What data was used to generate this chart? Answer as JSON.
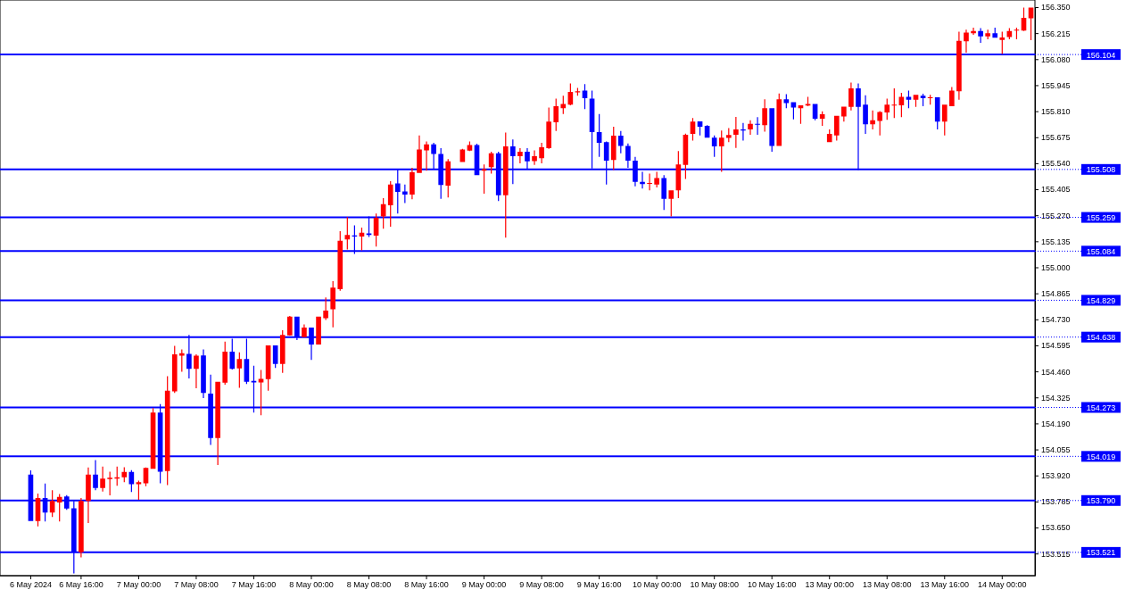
{
  "chart_data": {
    "type": "candlestick",
    "categories": [
      "6 May 2024",
      null,
      null,
      null,
      null,
      null,
      null,
      "6 May 16:00",
      null,
      null,
      null,
      null,
      null,
      null,
      null,
      "7 May 00:00",
      null,
      null,
      null,
      null,
      null,
      null,
      null,
      "7 May 08:00",
      null,
      null,
      null,
      null,
      null,
      null,
      null,
      "7 May 16:00",
      null,
      null,
      null,
      null,
      null,
      null,
      null,
      "8 May 00:00",
      null,
      null,
      null,
      null,
      null,
      null,
      null,
      "8 May 08:00",
      null,
      null,
      null,
      null,
      null,
      null,
      null,
      "8 May 16:00",
      null,
      null,
      null,
      null,
      null,
      null,
      null,
      "9 May 00:00",
      null,
      null,
      null,
      null,
      null,
      null,
      null,
      "9 May 08:00",
      null,
      null,
      null,
      null,
      null,
      null,
      null,
      "9 May 16:00",
      null,
      null,
      null,
      null,
      null,
      null,
      null,
      "10 May 00:00",
      null,
      null,
      null,
      null,
      null,
      null,
      null,
      "10 May 08:00",
      null,
      null,
      null,
      null,
      null,
      null,
      null,
      "10 May 16:00",
      null,
      null,
      null,
      null,
      null,
      null,
      null,
      "13 May 00:00",
      null,
      null,
      null,
      null,
      null,
      null,
      null,
      "13 May 08:00",
      null,
      null,
      null,
      null,
      null,
      null,
      null,
      "13 May 16:00",
      null,
      null,
      null,
      null,
      null,
      null,
      null,
      "14 May 00:00",
      null,
      null,
      null,
      null
    ],
    "ohlc": [
      [
        153.924,
        153.947,
        153.684,
        153.684
      ],
      [
        153.684,
        153.826,
        153.656,
        153.803
      ],
      [
        153.803,
        153.878,
        153.681,
        153.728
      ],
      [
        153.728,
        153.843,
        153.704,
        153.788
      ],
      [
        153.78,
        153.824,
        153.681,
        153.809
      ],
      [
        153.811,
        153.818,
        153.741,
        153.748
      ],
      [
        153.75,
        153.788,
        153.412,
        153.521
      ],
      [
        153.521,
        153.803,
        153.495,
        153.788
      ],
      [
        153.788,
        153.962,
        153.673,
        153.924
      ],
      [
        153.924,
        154.0,
        153.844,
        153.855
      ],
      [
        153.855,
        153.966,
        153.837,
        153.904
      ],
      [
        153.901,
        153.939,
        153.817,
        153.908
      ],
      [
        153.904,
        153.966,
        153.867,
        153.911
      ],
      [
        153.91,
        153.963,
        153.885,
        153.938
      ],
      [
        153.938,
        153.948,
        153.834,
        153.875
      ],
      [
        153.875,
        153.893,
        153.794,
        153.885
      ],
      [
        153.879,
        153.962,
        153.864,
        153.959
      ],
      [
        153.954,
        154.269,
        153.954,
        154.246
      ],
      [
        154.246,
        154.29,
        153.879,
        153.94
      ],
      [
        153.943,
        154.435,
        153.87,
        154.36
      ],
      [
        154.356,
        154.593,
        154.348,
        154.549
      ],
      [
        154.542,
        154.574,
        154.458,
        154.554
      ],
      [
        154.551,
        154.649,
        154.423,
        154.473
      ],
      [
        154.473,
        154.549,
        154.373,
        154.542
      ],
      [
        154.543,
        154.574,
        154.322,
        154.348
      ],
      [
        154.345,
        154.443,
        154.078,
        154.114
      ],
      [
        154.114,
        154.406,
        153.974,
        154.406
      ],
      [
        154.401,
        154.615,
        154.391,
        154.562
      ],
      [
        154.562,
        154.629,
        154.47,
        154.473
      ],
      [
        154.475,
        154.559,
        154.375,
        154.524
      ],
      [
        154.524,
        154.629,
        154.394,
        154.406
      ],
      [
        154.411,
        154.489,
        154.246,
        154.403
      ],
      [
        154.403,
        154.467,
        154.233,
        154.421
      ],
      [
        154.42,
        154.595,
        154.36,
        154.595
      ],
      [
        154.595,
        154.595,
        154.478,
        154.499
      ],
      [
        154.499,
        154.673,
        154.452,
        154.649
      ],
      [
        154.647,
        154.748,
        154.646,
        154.744
      ],
      [
        154.744,
        154.744,
        154.623,
        154.636
      ],
      [
        154.638,
        154.704,
        154.638,
        154.687
      ],
      [
        154.687,
        154.687,
        154.519,
        154.6
      ],
      [
        154.6,
        154.744,
        154.6,
        154.744
      ],
      [
        154.736,
        154.844,
        154.727,
        154.776
      ],
      [
        154.782,
        154.928,
        154.689,
        154.895
      ],
      [
        154.886,
        155.188,
        154.878,
        155.138
      ],
      [
        155.145,
        155.261,
        155.093,
        155.168
      ],
      [
        155.166,
        155.218,
        155.069,
        155.16
      ],
      [
        155.16,
        155.206,
        155.088,
        155.179
      ],
      [
        155.176,
        155.264,
        155.157,
        155.168
      ],
      [
        155.165,
        155.279,
        155.108,
        155.257
      ],
      [
        155.264,
        155.359,
        155.2,
        155.328
      ],
      [
        155.322,
        155.447,
        155.211,
        155.429
      ],
      [
        155.435,
        155.509,
        155.279,
        155.391
      ],
      [
        155.394,
        155.429,
        155.333,
        155.377
      ],
      [
        155.378,
        155.516,
        155.353,
        155.493
      ],
      [
        155.49,
        155.684,
        155.49,
        155.611
      ],
      [
        155.607,
        155.653,
        155.501,
        155.638
      ],
      [
        155.638,
        155.646,
        155.508,
        155.588
      ],
      [
        155.588,
        155.618,
        155.356,
        155.427
      ],
      [
        155.424,
        155.562,
        155.363,
        155.55
      ],
      null,
      [
        155.546,
        155.615,
        155.546,
        155.611
      ],
      [
        155.606,
        155.653,
        155.603,
        155.634
      ],
      [
        155.634,
        155.641,
        155.478,
        155.478
      ],
      [
        155.501,
        155.534,
        155.382,
        155.509
      ],
      [
        155.52,
        155.6,
        155.486,
        155.592
      ],
      [
        155.592,
        155.6,
        155.344,
        155.374
      ],
      [
        155.374,
        155.699,
        155.154,
        155.628
      ],
      [
        155.628,
        155.664,
        155.432,
        155.577
      ],
      [
        155.577,
        155.618,
        155.539,
        155.6
      ],
      [
        155.6,
        155.618,
        155.511,
        155.55
      ],
      [
        155.551,
        155.607,
        155.531,
        155.577
      ],
      [
        155.566,
        155.646,
        155.539,
        155.623
      ],
      [
        155.618,
        155.829,
        155.615,
        155.756
      ],
      [
        155.753,
        155.875,
        155.707,
        155.836
      ],
      [
        155.825,
        155.89,
        155.795,
        155.847
      ],
      [
        155.844,
        155.954,
        155.841,
        155.91
      ],
      [
        155.908,
        155.931,
        155.89,
        155.913
      ],
      [
        155.917,
        155.951,
        155.821,
        155.878
      ],
      [
        155.875,
        155.917,
        155.513,
        155.702
      ],
      [
        155.702,
        155.795,
        155.573,
        155.646
      ],
      [
        155.649,
        155.653,
        155.429,
        155.554
      ],
      [
        155.557,
        155.73,
        155.505,
        155.683
      ],
      [
        155.683,
        155.707,
        155.592,
        155.63
      ],
      [
        155.63,
        155.643,
        155.516,
        155.554
      ],
      [
        155.554,
        155.573,
        155.42,
        155.444
      ],
      [
        155.444,
        155.496,
        155.409,
        155.432
      ],
      [
        155.433,
        155.486,
        155.399,
        155.438
      ],
      [
        155.429,
        155.496,
        155.414,
        155.463
      ],
      [
        155.463,
        155.478,
        155.298,
        155.356
      ],
      [
        155.356,
        155.399,
        155.264,
        155.399
      ],
      [
        155.399,
        155.603,
        155.359,
        155.534
      ],
      [
        155.531,
        155.694,
        155.459,
        155.688
      ],
      [
        155.692,
        155.775,
        155.658,
        155.756
      ],
      [
        155.757,
        155.757,
        155.684,
        155.73
      ],
      [
        155.734,
        155.737,
        155.673,
        155.673
      ],
      [
        155.673,
        155.684,
        155.573,
        155.628
      ],
      [
        155.628,
        155.71,
        155.496,
        155.673
      ],
      [
        155.672,
        155.722,
        155.649,
        155.687
      ],
      [
        155.688,
        155.78,
        155.62,
        155.715
      ],
      [
        155.715,
        155.749,
        155.658,
        155.71
      ],
      [
        155.715,
        155.763,
        155.688,
        155.745
      ],
      [
        155.745,
        155.779,
        155.688,
        155.74
      ],
      [
        155.737,
        155.872,
        155.704,
        155.826
      ],
      [
        155.826,
        155.826,
        155.6,
        155.63
      ],
      [
        155.63,
        155.902,
        155.63,
        155.872
      ],
      [
        155.872,
        155.898,
        155.825,
        155.852
      ],
      [
        155.857,
        155.857,
        155.768,
        155.829
      ],
      [
        155.825,
        155.841,
        155.745,
        155.841
      ],
      [
        155.84,
        155.885,
        155.836,
        155.847
      ],
      [
        155.847,
        155.847,
        155.763,
        155.771
      ],
      [
        155.771,
        155.809,
        155.734,
        155.794
      ],
      [
        155.65,
        155.715,
        155.65,
        155.692
      ],
      [
        155.684,
        155.786,
        155.658,
        155.786
      ],
      [
        155.783,
        155.834,
        155.756,
        155.834
      ],
      [
        155.832,
        155.959,
        155.814,
        155.928
      ],
      [
        155.928,
        155.954,
        155.505,
        155.832
      ],
      [
        155.844,
        155.893,
        155.692,
        155.742
      ],
      [
        155.742,
        155.814,
        155.715,
        155.763
      ],
      [
        155.76,
        155.811,
        155.684,
        155.806
      ],
      [
        155.803,
        155.875,
        155.765,
        155.844
      ],
      [
        155.84,
        155.928,
        155.775,
        155.844
      ],
      [
        155.841,
        155.905,
        155.779,
        155.885
      ],
      [
        155.885,
        155.917,
        155.825,
        155.87
      ],
      [
        155.87,
        155.895,
        155.832,
        155.895
      ],
      [
        155.89,
        155.901,
        155.836,
        155.878
      ],
      [
        155.879,
        155.895,
        155.844,
        155.882
      ],
      [
        155.882,
        155.882,
        155.715,
        155.756
      ],
      [
        155.756,
        155.844,
        155.684,
        155.844
      ],
      [
        155.836,
        155.936,
        155.836,
        155.917
      ],
      [
        155.913,
        156.223,
        155.87,
        156.175
      ],
      [
        156.173,
        156.233,
        156.114,
        156.218
      ],
      [
        156.215,
        156.244,
        156.206,
        156.226
      ],
      [
        156.226,
        156.241,
        156.165,
        156.198
      ],
      [
        156.198,
        156.233,
        156.183,
        156.214
      ],
      [
        156.214,
        156.244,
        156.191,
        156.191
      ],
      [
        156.18,
        156.223,
        156.107,
        156.192
      ],
      [
        156.195,
        156.241,
        156.183,
        156.226
      ],
      [
        156.229,
        156.244,
        156.183,
        156.233
      ],
      [
        156.229,
        156.348,
        156.226,
        156.294
      ],
      [
        156.292,
        156.348,
        156.179,
        156.348
      ]
    ],
    "colors": [
      "#0000ff",
      "#ff0000",
      "#0000ff",
      "#ff0000",
      "#ff0000",
      "#0000ff",
      "#0000ff",
      "#ff0000",
      "#ff0000",
      "#0000ff",
      "#ff0000",
      "#ff0000",
      "#ff0000",
      "#ff0000",
      "#0000ff",
      "#ff0000",
      "#ff0000",
      "#ff0000",
      "#0000ff",
      "#ff0000",
      "#ff0000",
      "#ff0000",
      "#0000ff",
      "#ff0000",
      "#0000ff",
      "#0000ff",
      "#ff0000",
      "#ff0000",
      "#0000ff",
      "#ff0000",
      "#0000ff",
      "#0000ff",
      "#ff0000",
      "#ff0000",
      "#0000ff",
      "#ff0000",
      "#ff0000",
      "#0000ff",
      "#ff0000",
      "#0000ff",
      "#ff0000",
      "#ff0000",
      "#ff0000",
      "#ff0000",
      "#ff0000",
      "#0000ff",
      "#ff0000",
      "#0000ff",
      "#ff0000",
      "#ff0000",
      "#ff0000",
      "#0000ff",
      "#0000ff",
      "#ff0000",
      "#ff0000",
      "#ff0000",
      "#0000ff",
      "#0000ff",
      "#ff0000",
      null,
      "#ff0000",
      "#ff0000",
      "#0000ff",
      "#ff0000",
      "#ff0000",
      "#0000ff",
      "#ff0000",
      "#0000ff",
      "#ff0000",
      "#0000ff",
      "#ff0000",
      "#ff0000",
      "#ff0000",
      "#ff0000",
      "#ff0000",
      "#ff0000",
      "#ff0000",
      "#0000ff",
      "#0000ff",
      "#0000ff",
      "#0000ff",
      "#ff0000",
      "#0000ff",
      "#0000ff",
      "#0000ff",
      "#0000ff",
      "#ff0000",
      "#ff0000",
      "#0000ff",
      "#ff0000",
      "#ff0000",
      "#ff0000",
      "#ff0000",
      "#0000ff",
      "#0000ff",
      "#0000ff",
      "#ff0000",
      "#ff0000",
      "#ff0000",
      "#0000ff",
      "#ff0000",
      "#0000ff",
      "#ff0000",
      "#0000ff",
      "#ff0000",
      "#0000ff",
      "#0000ff",
      "#ff0000",
      "#ff0000",
      "#0000ff",
      "#ff0000",
      "#ff0000",
      "#ff0000",
      "#ff0000",
      "#ff0000",
      "#0000ff",
      "#0000ff",
      "#ff0000",
      "#ff0000",
      "#ff0000",
      "#ff0000",
      "#ff0000",
      "#0000ff",
      "#ff0000",
      "#0000ff",
      "#ff0000",
      "#0000ff",
      "#ff0000",
      "#ff0000",
      "#ff0000",
      "#ff0000",
      "#ff0000",
      "#0000ff",
      "#ff0000",
      "#0000ff",
      "#ff0000",
      "#ff0000",
      "#ff0000",
      "#ff0000",
      "#ff0000"
    ],
    "ylim": [
      153.4,
      156.35
    ],
    "yticks": [
      {
        "value": 153.515,
        "label": "153.515"
      },
      {
        "value": 153.65,
        "label": "153.650"
      },
      {
        "value": 153.785,
        "label": "153.785"
      },
      {
        "value": 153.92,
        "label": "153.920"
      },
      {
        "value": 154.055,
        "label": "154.055"
      },
      {
        "value": 154.19,
        "label": "154.190"
      },
      {
        "value": 154.325,
        "label": "154.325"
      },
      {
        "value": 154.46,
        "label": "154.460"
      },
      {
        "value": 154.595,
        "label": "154.595"
      },
      {
        "value": 154.73,
        "label": "154.730"
      },
      {
        "value": 154.865,
        "label": "154.865"
      },
      {
        "value": 155.0,
        "label": "155.000"
      },
      {
        "value": 155.135,
        "label": "155.135"
      },
      {
        "value": 155.27,
        "label": "155.270"
      },
      {
        "value": 155.405,
        "label": "155.405"
      },
      {
        "value": 155.54,
        "label": "155.540"
      },
      {
        "value": 155.675,
        "label": "155.675"
      },
      {
        "value": 155.81,
        "label": "155.810"
      },
      {
        "value": 155.945,
        "label": "155.945"
      },
      {
        "value": 156.08,
        "label": "156.080"
      },
      {
        "value": 156.215,
        "label": "156.215"
      },
      {
        "value": 156.35,
        "label": "156.350"
      }
    ],
    "ref_lines": [
      {
        "axis": "y",
        "value": 156.104,
        "label": "156.104",
        "color": "#0000ff"
      },
      {
        "axis": "y",
        "value": 155.508,
        "label": "155.508",
        "color": "#0000ff"
      },
      {
        "axis": "y",
        "value": 155.259,
        "label": "155.259",
        "color": "#0000ff"
      },
      {
        "axis": "y",
        "value": 155.084,
        "label": "155.084",
        "color": "#0000ff"
      },
      {
        "axis": "y",
        "value": 154.829,
        "label": "154.829",
        "color": "#0000ff"
      },
      {
        "axis": "y",
        "value": 154.638,
        "label": "154.638",
        "color": "#0000ff"
      },
      {
        "axis": "y",
        "value": 154.273,
        "label": "154.273",
        "color": "#0000ff"
      },
      {
        "axis": "y",
        "value": 154.019,
        "label": "154.019",
        "color": "#0000ff"
      },
      {
        "axis": "y",
        "value": 153.79,
        "label": "153.790",
        "color": "#0000ff"
      },
      {
        "axis": "y",
        "value": 153.521,
        "label": "153.521",
        "color": "#0000ff"
      }
    ]
  }
}
